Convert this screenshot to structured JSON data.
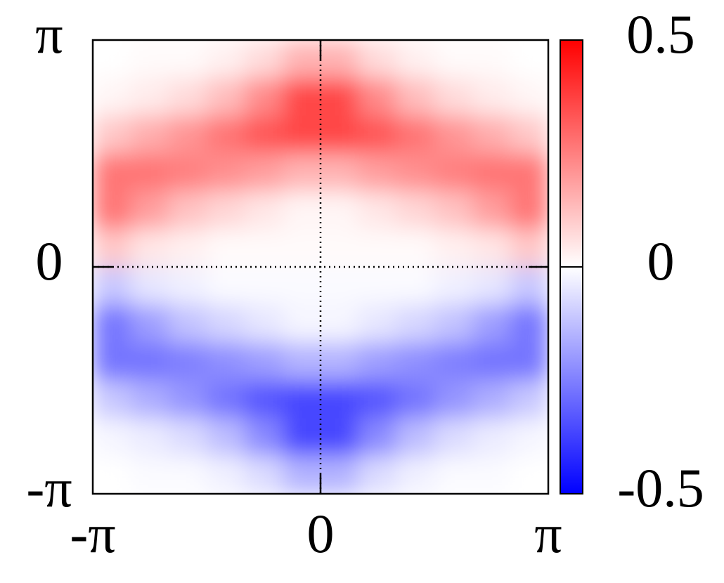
{
  "chart_data": {
    "type": "heatmap",
    "xlim": [
      -3.14159,
      3.14159
    ],
    "ylim": [
      -3.14159,
      3.14159
    ],
    "xticks": [
      {
        "value": -3.14159,
        "label": "-π"
      },
      0,
      {
        "value": 3.14159,
        "label": "π"
      }
    ],
    "yticks": [
      {
        "value": -3.14159,
        "label": "-π"
      },
      0,
      {
        "value": 3.14159,
        "label": "π"
      }
    ],
    "zlim": [
      -0.5,
      0.5
    ],
    "zticks": [
      -0.5,
      0,
      0.5
    ],
    "zero_lines": true,
    "colormap": {
      "low": "#0000ff",
      "mid": "#ffffff",
      "high": "#ff0000"
    },
    "z": [
      [
        0,
        0.01,
        0.01,
        0.03,
        0.07,
        0.15,
        0.15,
        0.07,
        0.03,
        0.01,
        0.01,
        0
      ],
      [
        0.02,
        0.04,
        0.07,
        0.13,
        0.23,
        0.36,
        0.36,
        0.23,
        0.13,
        0.07,
        0.04,
        0.02
      ],
      [
        0.11,
        0.16,
        0.21,
        0.27,
        0.33,
        0.36,
        0.36,
        0.33,
        0.27,
        0.21,
        0.16,
        0.11
      ],
      [
        0.27,
        0.27,
        0.25,
        0.22,
        0.19,
        0.15,
        0.15,
        0.19,
        0.22,
        0.25,
        0.27,
        0.27
      ],
      [
        0.27,
        0.19,
        0.12,
        0.08,
        0.05,
        0.02,
        0.02,
        0.05,
        0.08,
        0.12,
        0.19,
        0.27
      ],
      [
        0.11,
        0.05,
        0.03,
        0.01,
        0.01,
        0.01,
        0.01,
        0.01,
        0.01,
        0.03,
        0.05,
        0.11
      ],
      [
        -0.11,
        -0.05,
        -0.03,
        -0.01,
        -0.01,
        -0.01,
        -0.01,
        -0.01,
        -0.01,
        -0.03,
        -0.05,
        -0.11
      ],
      [
        -0.27,
        -0.19,
        -0.12,
        -0.08,
        -0.05,
        -0.02,
        -0.02,
        -0.05,
        -0.08,
        -0.12,
        -0.19,
        -0.27
      ],
      [
        -0.27,
        -0.27,
        -0.25,
        -0.22,
        -0.19,
        -0.15,
        -0.15,
        -0.19,
        -0.22,
        -0.25,
        -0.27,
        -0.27
      ],
      [
        -0.11,
        -0.16,
        -0.21,
        -0.27,
        -0.33,
        -0.36,
        -0.36,
        -0.33,
        -0.27,
        -0.21,
        -0.16,
        -0.11
      ],
      [
        -0.02,
        -0.04,
        -0.07,
        -0.13,
        -0.23,
        -0.36,
        -0.36,
        -0.23,
        -0.13,
        -0.07,
        -0.04,
        -0.02
      ],
      [
        0,
        -0.01,
        -0.01,
        -0.03,
        -0.07,
        -0.15,
        -0.15,
        -0.07,
        -0.03,
        -0.01,
        -0.01,
        0
      ]
    ]
  }
}
